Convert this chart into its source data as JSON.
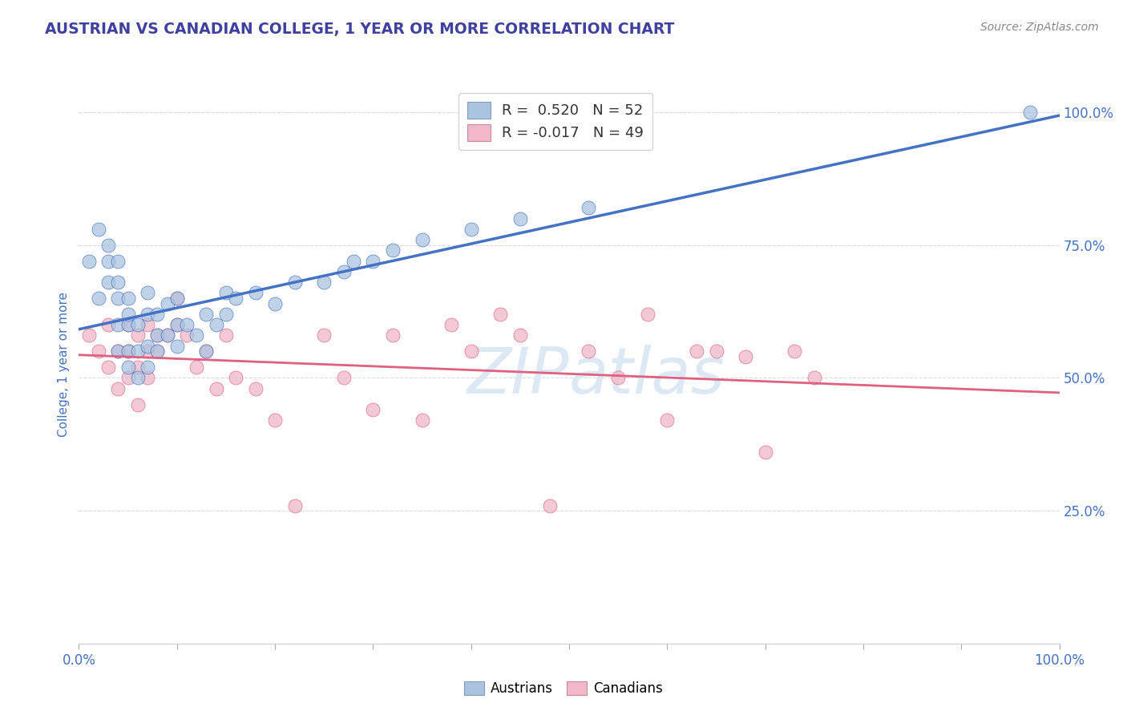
{
  "title": "AUSTRIAN VS CANADIAN COLLEGE, 1 YEAR OR MORE CORRELATION CHART",
  "source_text": "Source: ZipAtlas.com",
  "ylabel": "College, 1 year or more",
  "y_ticks_right": [
    0.25,
    0.5,
    0.75,
    1.0
  ],
  "y_tick_labels_right": [
    "25.0%",
    "50.0%",
    "75.0%",
    "100.0%"
  ],
  "legend_r_austrians": "0.520",
  "legend_n_austrians": "52",
  "legend_r_canadians": "-0.017",
  "legend_n_canadians": "49",
  "blue_dot_color": "#aac4e0",
  "pink_dot_color": "#f0b8c8",
  "blue_line_color": "#4472c4",
  "pink_line_color": "#e06080",
  "title_color": "#4040a0",
  "axis_label_color": "#4472c4",
  "tick_label_color": "#4472c4",
  "watermark_color": "#dce8f4",
  "background_color": "#ffffff",
  "grid_color": "#d8dce8",
  "legend_blue": "#aac4e0",
  "legend_pink": "#f0b8c8",
  "xlim": [
    0.0,
    1.0
  ],
  "ylim": [
    0.0,
    1.05
  ],
  "austrians_x": [
    0.01,
    0.02,
    0.02,
    0.03,
    0.03,
    0.03,
    0.04,
    0.04,
    0.04,
    0.04,
    0.04,
    0.05,
    0.05,
    0.05,
    0.05,
    0.05,
    0.06,
    0.06,
    0.06,
    0.07,
    0.07,
    0.07,
    0.07,
    0.08,
    0.08,
    0.08,
    0.09,
    0.09,
    0.1,
    0.1,
    0.1,
    0.11,
    0.12,
    0.13,
    0.13,
    0.14,
    0.15,
    0.15,
    0.16,
    0.18,
    0.2,
    0.22,
    0.25,
    0.27,
    0.28,
    0.3,
    0.32,
    0.35,
    0.4,
    0.45,
    0.52,
    0.97
  ],
  "austrians_y": [
    0.72,
    0.65,
    0.78,
    0.68,
    0.72,
    0.75,
    0.55,
    0.6,
    0.65,
    0.68,
    0.72,
    0.52,
    0.55,
    0.6,
    0.62,
    0.65,
    0.5,
    0.55,
    0.6,
    0.52,
    0.56,
    0.62,
    0.66,
    0.55,
    0.58,
    0.62,
    0.58,
    0.64,
    0.56,
    0.6,
    0.65,
    0.6,
    0.58,
    0.55,
    0.62,
    0.6,
    0.62,
    0.66,
    0.65,
    0.66,
    0.64,
    0.68,
    0.68,
    0.7,
    0.72,
    0.72,
    0.74,
    0.76,
    0.78,
    0.8,
    0.82,
    1.0
  ],
  "canadians_x": [
    0.01,
    0.02,
    0.03,
    0.03,
    0.04,
    0.04,
    0.05,
    0.05,
    0.05,
    0.06,
    0.06,
    0.06,
    0.07,
    0.07,
    0.07,
    0.08,
    0.08,
    0.09,
    0.1,
    0.1,
    0.11,
    0.12,
    0.13,
    0.14,
    0.15,
    0.16,
    0.18,
    0.2,
    0.22,
    0.25,
    0.27,
    0.3,
    0.32,
    0.35,
    0.38,
    0.4,
    0.43,
    0.45,
    0.48,
    0.52,
    0.55,
    0.58,
    0.6,
    0.63,
    0.65,
    0.68,
    0.7,
    0.73,
    0.75
  ],
  "canadians_y": [
    0.58,
    0.55,
    0.52,
    0.6,
    0.48,
    0.55,
    0.5,
    0.55,
    0.6,
    0.45,
    0.52,
    0.58,
    0.5,
    0.55,
    0.6,
    0.55,
    0.58,
    0.58,
    0.6,
    0.65,
    0.58,
    0.52,
    0.55,
    0.48,
    0.58,
    0.5,
    0.48,
    0.42,
    0.26,
    0.58,
    0.5,
    0.44,
    0.58,
    0.42,
    0.6,
    0.55,
    0.62,
    0.58,
    0.26,
    0.55,
    0.5,
    0.62,
    0.42,
    0.55,
    0.55,
    0.54,
    0.36,
    0.55,
    0.5
  ],
  "x_bottom_ticks": [
    0.0,
    0.1,
    0.2,
    0.3,
    0.4,
    0.5,
    0.6,
    0.7,
    0.8,
    0.9,
    1.0
  ]
}
